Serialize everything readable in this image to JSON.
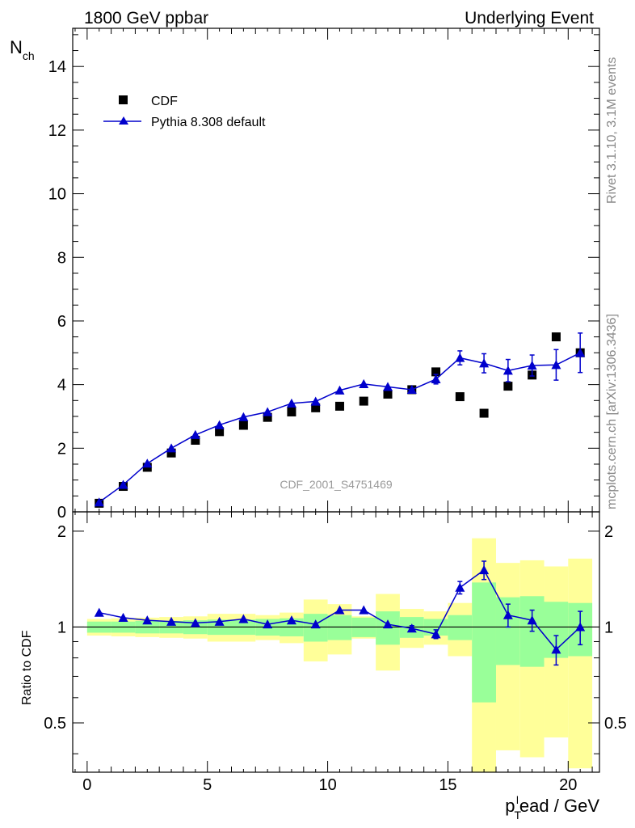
{
  "header": {
    "left_title": "1800 GeV ppbar",
    "right_title": "Underlying Event"
  },
  "side_labels": {
    "rivet": "Rivet 3.1.10,  3.1M events",
    "mcplots": "mcplots.cern.ch [arXiv:1306.3436]"
  },
  "analysis_label": "CDF_2001_S4751469",
  "colors": {
    "mc": "#0000cc",
    "band_inner": "#99ff99",
    "band_outer": "#ffff99",
    "data": "#000000"
  },
  "chart_data": [
    {
      "type": "scatter",
      "panel": "main",
      "ylabel": "N",
      "ylabel_sub": "ch",
      "xlim": [
        -0.6,
        21.3
      ],
      "ylim": [
        0,
        15.2
      ],
      "xticks": [
        0,
        5,
        10,
        15,
        20
      ],
      "yticks": [
        0,
        2,
        4,
        6,
        8,
        10,
        12,
        14
      ],
      "ytick_labels": [
        "0",
        "2",
        "4",
        "6",
        "8",
        "10",
        "12",
        "14"
      ],
      "legend_position": "top-left",
      "series": [
        {
          "name": "CDF",
          "marker": "square",
          "x": [
            0.5,
            1.5,
            2.5,
            3.5,
            4.5,
            5.5,
            6.5,
            7.5,
            8.5,
            9.5,
            10.5,
            11.5,
            12.5,
            13.5,
            14.5,
            15.5,
            16.5,
            17.5,
            18.5,
            19.5,
            20.5
          ],
          "y": [
            0.27,
            0.8,
            1.4,
            1.85,
            2.25,
            2.52,
            2.72,
            2.97,
            3.14,
            3.27,
            3.32,
            3.48,
            3.7,
            3.84,
            4.4,
            3.62,
            3.1,
            3.95,
            4.3,
            5.5,
            5.0
          ]
        },
        {
          "name": "Pythia 8.308 default",
          "marker": "triangle",
          "x": [
            0.5,
            1.5,
            2.5,
            3.5,
            4.5,
            5.5,
            6.5,
            7.5,
            8.5,
            9.5,
            10.5,
            11.5,
            12.5,
            13.5,
            14.5,
            15.5,
            16.5,
            17.5,
            18.5,
            19.5,
            20.5
          ],
          "y": [
            0.3,
            0.85,
            1.52,
            2.0,
            2.42,
            2.73,
            2.98,
            3.14,
            3.41,
            3.47,
            3.82,
            4.02,
            3.93,
            3.84,
            4.17,
            4.84,
            4.67,
            4.44,
            4.6,
            4.62,
            5.0
          ],
          "yerr": [
            0,
            0,
            0,
            0,
            0,
            0,
            0,
            0,
            0,
            0,
            0,
            0,
            0,
            0,
            0.15,
            0.22,
            0.3,
            0.35,
            0.33,
            0.48,
            0.62
          ]
        }
      ]
    },
    {
      "type": "scatter",
      "panel": "ratio",
      "ylabel": "Ratio to CDF",
      "xlabel_main": "p",
      "xlabel_sub": "T",
      "xlabel_sup": "l",
      "xlabel_rest": "ead / GeV",
      "xlim": [
        -0.6,
        21.3
      ],
      "ylim": [
        0.35,
        2.3
      ],
      "xticks": [
        0,
        5,
        10,
        15,
        20
      ],
      "xtick_labels": [
        "0",
        "5",
        "10",
        "15",
        "20"
      ],
      "yticks": [
        0.5,
        1,
        2
      ],
      "ytick_labels": [
        "0.5",
        "1",
        "2"
      ],
      "ratio_line": 1,
      "bins": [
        [
          0,
          1
        ],
        [
          1,
          2
        ],
        [
          2,
          3
        ],
        [
          3,
          4
        ],
        [
          4,
          5
        ],
        [
          5,
          6
        ],
        [
          6,
          7
        ],
        [
          7,
          8
        ],
        [
          8,
          9
        ],
        [
          9,
          10
        ],
        [
          10,
          11
        ],
        [
          11,
          12
        ],
        [
          12,
          13
        ],
        [
          13,
          14
        ],
        [
          14,
          15
        ],
        [
          15,
          16
        ],
        [
          16,
          17
        ],
        [
          17,
          18
        ],
        [
          18,
          19
        ],
        [
          19,
          20
        ],
        [
          20,
          21
        ]
      ],
      "band_inner": [
        [
          0.96,
          1.04
        ],
        [
          0.96,
          1.04
        ],
        [
          0.955,
          1.045
        ],
        [
          0.955,
          1.045
        ],
        [
          0.95,
          1.05
        ],
        [
          0.945,
          1.055
        ],
        [
          0.945,
          1.055
        ],
        [
          0.94,
          1.06
        ],
        [
          0.935,
          1.065
        ],
        [
          0.9,
          1.1
        ],
        [
          0.91,
          1.09
        ],
        [
          0.93,
          1.07
        ],
        [
          0.88,
          1.12
        ],
        [
          0.925,
          1.075
        ],
        [
          0.94,
          1.06
        ],
        [
          0.91,
          1.09
        ],
        [
          0.58,
          1.38
        ],
        [
          0.76,
          1.24
        ],
        [
          0.75,
          1.25
        ],
        [
          0.8,
          1.2
        ],
        [
          0.81,
          1.19
        ]
      ],
      "band_outer": [
        [
          0.94,
          1.06
        ],
        [
          0.935,
          1.065
        ],
        [
          0.93,
          1.07
        ],
        [
          0.925,
          1.075
        ],
        [
          0.92,
          1.08
        ],
        [
          0.9,
          1.1
        ],
        [
          0.9,
          1.1
        ],
        [
          0.91,
          1.09
        ],
        [
          0.89,
          1.11
        ],
        [
          0.78,
          1.22
        ],
        [
          0.82,
          1.18
        ],
        [
          0.92,
          1.08
        ],
        [
          0.73,
          1.27
        ],
        [
          0.86,
          1.14
        ],
        [
          0.88,
          1.12
        ],
        [
          0.81,
          1.19
        ],
        [
          0.35,
          1.9
        ],
        [
          0.41,
          1.59
        ],
        [
          0.39,
          1.62
        ],
        [
          0.45,
          1.55
        ],
        [
          0.36,
          1.64
        ]
      ],
      "series": [
        {
          "name": "Pythia 8.308 default",
          "marker": "triangle",
          "x": [
            0.5,
            1.5,
            2.5,
            3.5,
            4.5,
            5.5,
            6.5,
            7.5,
            8.5,
            9.5,
            10.5,
            11.5,
            12.5,
            13.5,
            14.5,
            15.5,
            16.5,
            17.5,
            18.5,
            19.5,
            20.5
          ],
          "y": [
            1.11,
            1.07,
            1.05,
            1.04,
            1.03,
            1.04,
            1.06,
            1.02,
            1.05,
            1.02,
            1.13,
            1.13,
            1.02,
            0.99,
            0.95,
            1.33,
            1.51,
            1.09,
            1.05,
            0.85,
            1.0
          ],
          "yerr": [
            0,
            0,
            0,
            0,
            0,
            0,
            0,
            0,
            0,
            0,
            0,
            0,
            0,
            0.02,
            0.03,
            0.06,
            0.1,
            0.09,
            0.08,
            0.09,
            0.12
          ]
        }
      ]
    }
  ]
}
